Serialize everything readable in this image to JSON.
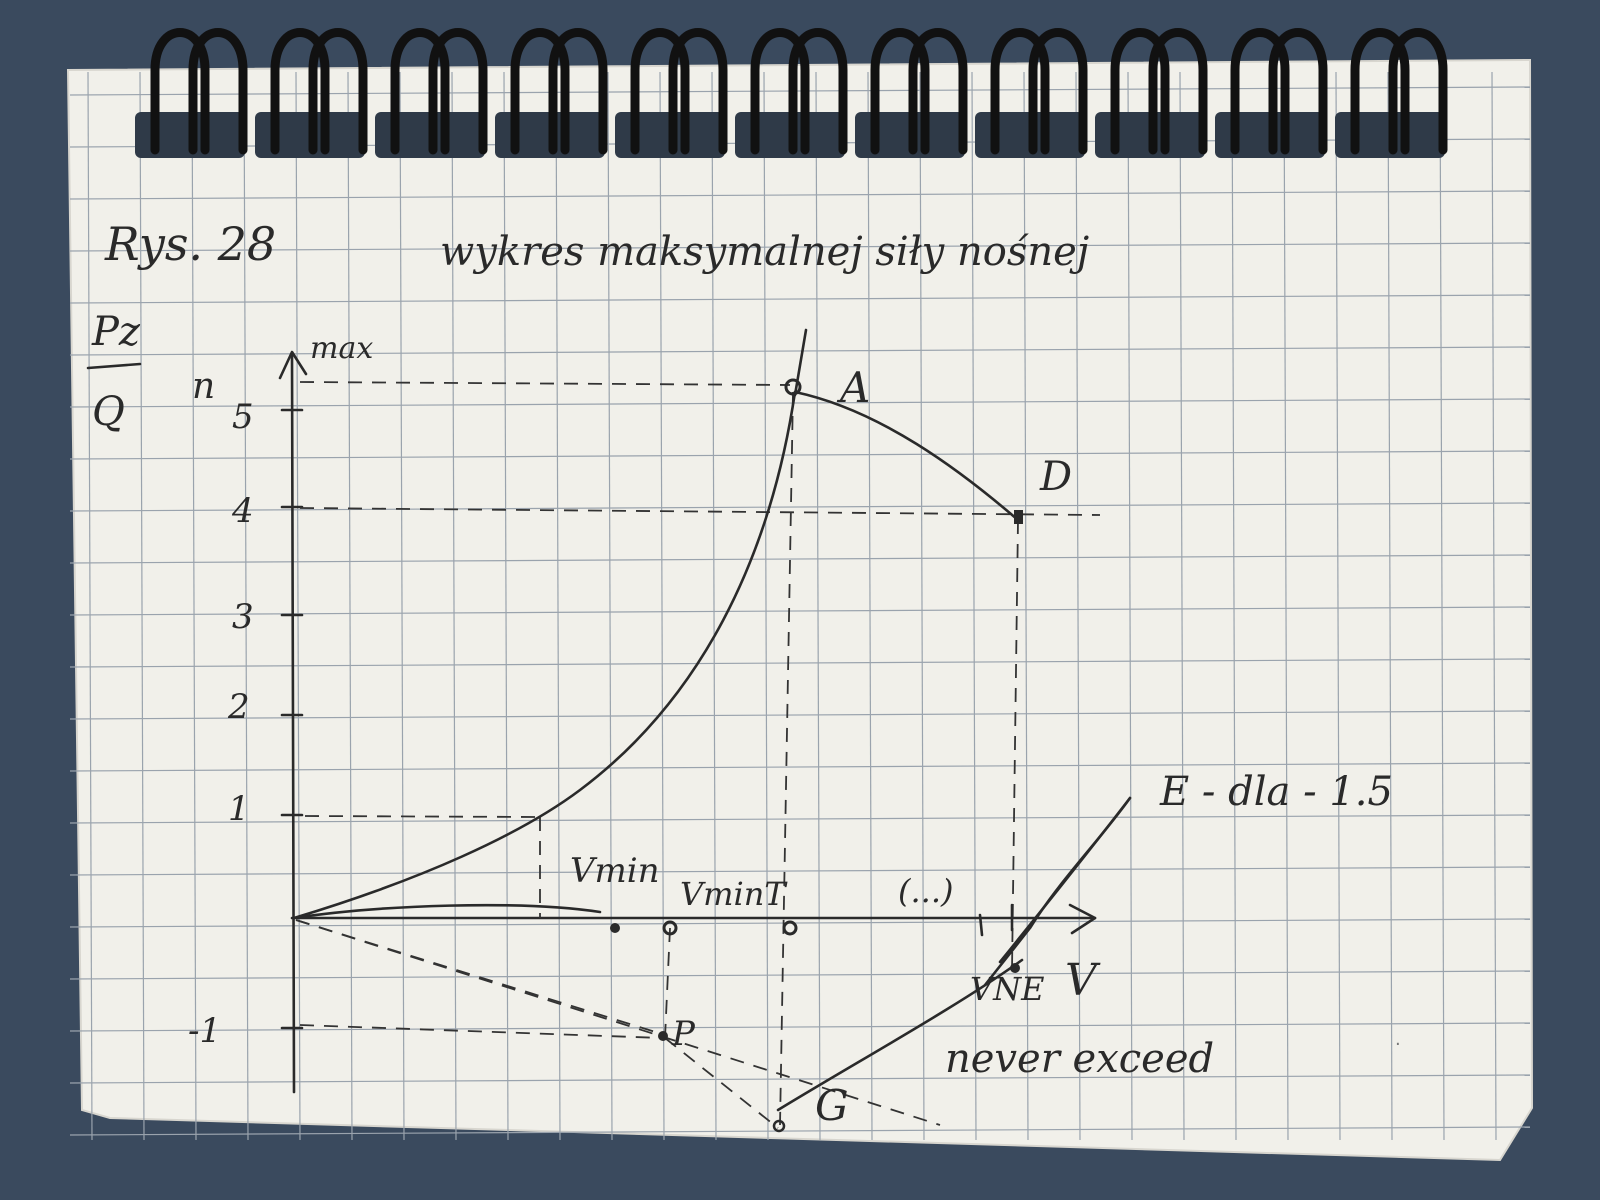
{
  "notebook": {
    "figure_label": "Rys. 28",
    "title": "wykres maksymalnej siły nośnej",
    "y_axis_fraction_top": "Pz",
    "y_axis_fraction_bottom": "Q",
    "y_axis_symbol": "n",
    "y_axis_subscript": "max",
    "x_axis_symbol": "V",
    "y_ticks": [
      "5",
      "4",
      "3",
      "2",
      "1",
      "-1"
    ],
    "points": {
      "A": "A",
      "D": "D",
      "G": "G",
      "P": "P",
      "E": "E - dla - 1.5"
    },
    "speed_labels": {
      "vmin": "Vmin",
      "vmint": "VminT",
      "ellipsis": "(...)",
      "vne": "VNE",
      "never_exceed": "never exceed"
    }
  },
  "colors": {
    "background": "#3a4a5e",
    "paper": "#f1f0ea",
    "grid": "#9aa3ad",
    "ink": "#2a2a2a",
    "spiral": "#111111"
  }
}
